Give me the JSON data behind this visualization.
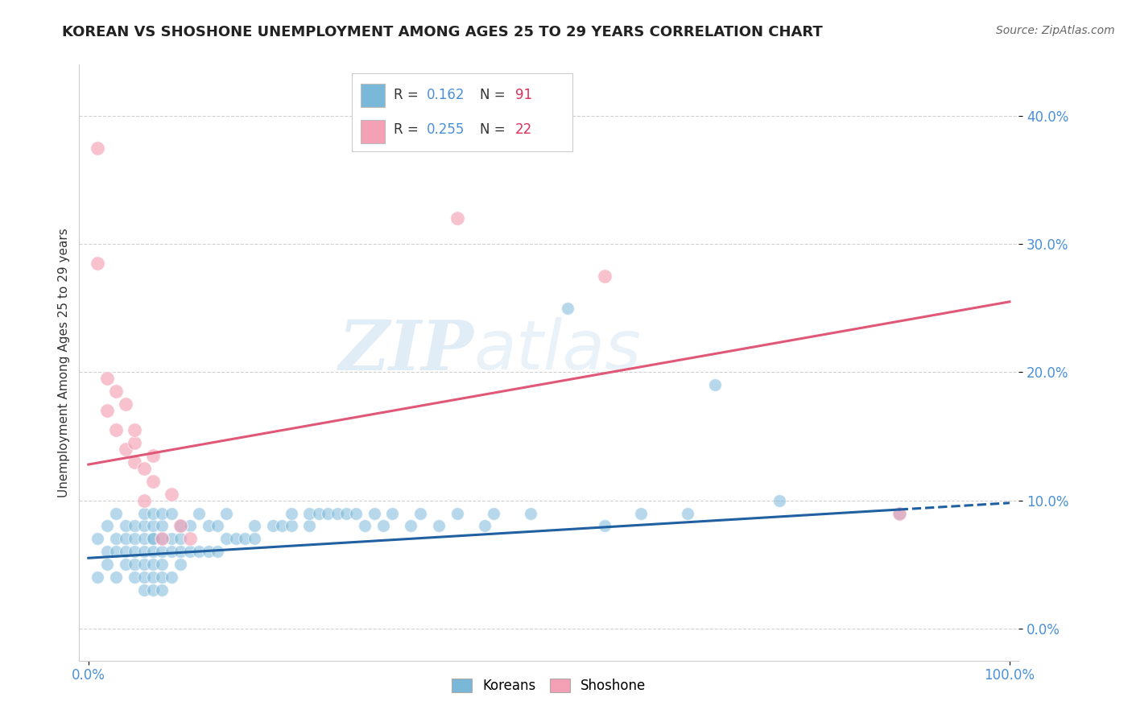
{
  "title": "KOREAN VS SHOSHONE UNEMPLOYMENT AMONG AGES 25 TO 29 YEARS CORRELATION CHART",
  "source": "Source: ZipAtlas.com",
  "ylabel": "Unemployment Among Ages 25 to 29 years",
  "xlim": [
    -0.01,
    1.01
  ],
  "ylim": [
    -0.025,
    0.44
  ],
  "yticks": [
    0.0,
    0.1,
    0.2,
    0.3,
    0.4
  ],
  "ytick_labels": [
    "0.0%",
    "10.0%",
    "20.0%",
    "30.0%",
    "40.0%"
  ],
  "xtick_labels": [
    "0.0%",
    "100.0%"
  ],
  "xtick_positions": [
    0.0,
    1.0
  ],
  "korean_R": 0.162,
  "korean_N": 91,
  "shoshone_R": 0.255,
  "shoshone_N": 22,
  "korean_color": "#7ab8d9",
  "shoshone_color": "#f4a0b5",
  "korean_line_color": "#2060a0",
  "shoshone_line_color": "#e05878",
  "korean_line_solid_end": 0.88,
  "background_color": "#ffffff",
  "grid_color": "#cccccc",
  "tick_label_color": "#4a90d9",
  "watermark_text": "ZIP",
  "watermark_text2": "atlas",
  "korean_x": [
    0.01,
    0.01,
    0.02,
    0.02,
    0.02,
    0.03,
    0.03,
    0.03,
    0.03,
    0.04,
    0.04,
    0.04,
    0.04,
    0.05,
    0.05,
    0.05,
    0.05,
    0.05,
    0.06,
    0.06,
    0.06,
    0.06,
    0.06,
    0.06,
    0.06,
    0.07,
    0.07,
    0.07,
    0.07,
    0.07,
    0.07,
    0.07,
    0.07,
    0.08,
    0.08,
    0.08,
    0.08,
    0.08,
    0.08,
    0.08,
    0.09,
    0.09,
    0.09,
    0.09,
    0.1,
    0.1,
    0.1,
    0.1,
    0.11,
    0.11,
    0.12,
    0.12,
    0.13,
    0.13,
    0.14,
    0.14,
    0.15,
    0.15,
    0.16,
    0.17,
    0.18,
    0.18,
    0.2,
    0.21,
    0.22,
    0.22,
    0.24,
    0.24,
    0.25,
    0.26,
    0.27,
    0.28,
    0.29,
    0.3,
    0.31,
    0.32,
    0.33,
    0.35,
    0.36,
    0.38,
    0.4,
    0.43,
    0.44,
    0.48,
    0.52,
    0.56,
    0.6,
    0.65,
    0.68,
    0.75,
    0.88
  ],
  "korean_y": [
    0.04,
    0.07,
    0.05,
    0.06,
    0.08,
    0.04,
    0.06,
    0.07,
    0.09,
    0.05,
    0.06,
    0.07,
    0.08,
    0.04,
    0.05,
    0.06,
    0.07,
    0.08,
    0.03,
    0.04,
    0.05,
    0.06,
    0.07,
    0.08,
    0.09,
    0.03,
    0.04,
    0.05,
    0.06,
    0.07,
    0.07,
    0.08,
    0.09,
    0.03,
    0.04,
    0.05,
    0.06,
    0.07,
    0.08,
    0.09,
    0.04,
    0.06,
    0.07,
    0.09,
    0.05,
    0.06,
    0.07,
    0.08,
    0.06,
    0.08,
    0.06,
    0.09,
    0.06,
    0.08,
    0.06,
    0.08,
    0.07,
    0.09,
    0.07,
    0.07,
    0.07,
    0.08,
    0.08,
    0.08,
    0.08,
    0.09,
    0.08,
    0.09,
    0.09,
    0.09,
    0.09,
    0.09,
    0.09,
    0.08,
    0.09,
    0.08,
    0.09,
    0.08,
    0.09,
    0.08,
    0.09,
    0.08,
    0.09,
    0.09,
    0.25,
    0.08,
    0.09,
    0.09,
    0.19,
    0.1,
    0.09
  ],
  "shoshone_x": [
    0.01,
    0.01,
    0.02,
    0.02,
    0.03,
    0.03,
    0.04,
    0.04,
    0.05,
    0.05,
    0.05,
    0.06,
    0.06,
    0.07,
    0.07,
    0.08,
    0.09,
    0.1,
    0.11,
    0.4,
    0.56,
    0.88
  ],
  "shoshone_y": [
    0.375,
    0.285,
    0.17,
    0.195,
    0.155,
    0.185,
    0.14,
    0.175,
    0.13,
    0.145,
    0.155,
    0.1,
    0.125,
    0.115,
    0.135,
    0.07,
    0.105,
    0.08,
    0.07,
    0.32,
    0.275,
    0.09
  ],
  "korean_line_x0": 0.0,
  "korean_line_y0": 0.055,
  "korean_line_x1": 1.0,
  "korean_line_y1": 0.098,
  "shoshone_line_x0": 0.0,
  "shoshone_line_y0": 0.128,
  "shoshone_line_x1": 1.0,
  "shoshone_line_y1": 0.255,
  "title_fontsize": 13,
  "axis_label_fontsize": 11,
  "tick_fontsize": 12,
  "legend_fontsize": 13
}
